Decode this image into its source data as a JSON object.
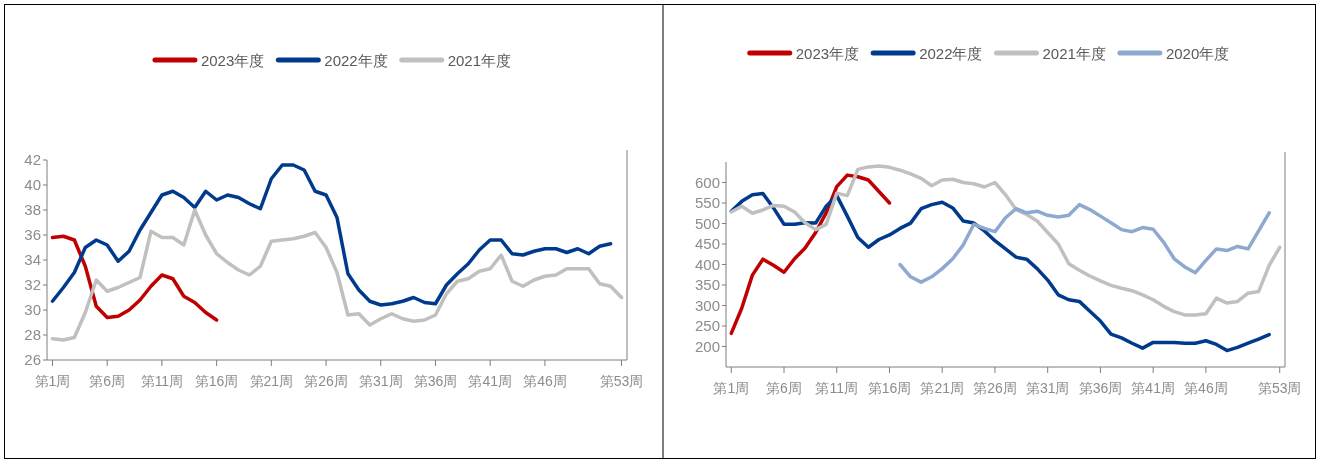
{
  "chart_data": [
    {
      "type": "line",
      "categories": [
        "第1周",
        null,
        null,
        null,
        null,
        "第6周",
        null,
        null,
        null,
        null,
        "第11周",
        null,
        null,
        null,
        null,
        "第16周",
        null,
        null,
        null,
        null,
        "第21周",
        null,
        null,
        null,
        null,
        "第26周",
        null,
        null,
        null,
        null,
        "第31周",
        null,
        null,
        null,
        null,
        "第36周",
        null,
        null,
        null,
        null,
        "第41周",
        null,
        null,
        null,
        null,
        "第46周",
        null,
        null,
        null,
        null,
        null,
        null,
        "第53周"
      ],
      "ylim": [
        26,
        42
      ],
      "yticks": [
        26,
        28,
        30,
        32,
        34,
        36,
        38,
        40,
        42
      ],
      "legend": "top",
      "grid": false,
      "series": [
        {
          "name": "2023年度",
          "color": "#c00000",
          "values": [
            35.8,
            35.9,
            35.6,
            33.5,
            30.3,
            29.4,
            29.5,
            30.0,
            30.8,
            31.9,
            32.8,
            32.5,
            31.1,
            30.6,
            29.8,
            29.2,
            null,
            null,
            null,
            null,
            null,
            null,
            null,
            null,
            null,
            null,
            null,
            null,
            null,
            null,
            null,
            null,
            null,
            null,
            null,
            null,
            null,
            null,
            null,
            null,
            null,
            null,
            null,
            null,
            null,
            null,
            null,
            null,
            null,
            null,
            null,
            null,
            null
          ]
        },
        {
          "name": "2022年度",
          "color": "#003a8c",
          "values": [
            30.7,
            31.8,
            33.0,
            35.0,
            35.6,
            35.2,
            33.9,
            34.7,
            36.4,
            37.8,
            39.2,
            39.5,
            39.0,
            38.2,
            39.5,
            38.8,
            39.2,
            39.0,
            38.5,
            38.1,
            40.5,
            41.6,
            41.6,
            41.2,
            39.5,
            39.2,
            37.4,
            32.9,
            31.6,
            30.7,
            30.4,
            30.5,
            30.7,
            31.0,
            30.6,
            30.5,
            32.0,
            32.9,
            33.7,
            34.8,
            35.6,
            35.6,
            34.5,
            34.4,
            34.7,
            34.9,
            34.9,
            34.6,
            34.9,
            34.5,
            35.1,
            35.3,
            null
          ]
        },
        {
          "name": "2021年度",
          "color": "#c0c0c0",
          "values": [
            27.7,
            27.6,
            27.8,
            29.8,
            32.4,
            31.5,
            31.8,
            32.2,
            32.6,
            36.3,
            35.8,
            35.8,
            35.2,
            38.0,
            36.0,
            34.5,
            33.8,
            33.2,
            32.8,
            33.5,
            35.5,
            35.6,
            35.7,
            35.9,
            36.2,
            35.0,
            33.0,
            29.6,
            29.7,
            28.8,
            29.3,
            29.7,
            29.3,
            29.1,
            29.2,
            29.6,
            31.3,
            32.3,
            32.5,
            33.1,
            33.3,
            34.4,
            32.3,
            31.9,
            32.4,
            32.7,
            32.8,
            33.3,
            33.3,
            33.3,
            32.1,
            31.9,
            31.0
          ]
        }
      ]
    },
    {
      "type": "line",
      "categories": [
        "第1周",
        null,
        null,
        null,
        null,
        "第6周",
        null,
        null,
        null,
        null,
        "第11周",
        null,
        null,
        null,
        null,
        "第16周",
        null,
        null,
        null,
        null,
        "第21周",
        null,
        null,
        null,
        null,
        "第26周",
        null,
        null,
        null,
        null,
        "第31周",
        null,
        null,
        null,
        null,
        "第36周",
        null,
        null,
        null,
        null,
        "第41周",
        null,
        null,
        null,
        null,
        "第46周",
        null,
        null,
        null,
        null,
        null,
        null,
        "第53周"
      ],
      "ylim": [
        150,
        650
      ],
      "yticks": [
        200,
        250,
        300,
        350,
        400,
        450,
        500,
        550,
        600
      ],
      "legend": "top",
      "grid": false,
      "series": [
        {
          "name": "2023年度",
          "color": "#c00000",
          "values": [
            232,
            294,
            374,
            413,
            398,
            381,
            414,
            440,
            478,
            526,
            590,
            618,
            614,
            606,
            578,
            550,
            null,
            null,
            null,
            null,
            null,
            null,
            null,
            null,
            null,
            null,
            null,
            null,
            null,
            null,
            null,
            null,
            null,
            null,
            null,
            null,
            null,
            null,
            null,
            null,
            null,
            null,
            null,
            null,
            null,
            null,
            null,
            null,
            null,
            null,
            null,
            null,
            null
          ]
        },
        {
          "name": "2022年度",
          "color": "#003a8c",
          "values": [
            530,
            554,
            570,
            573,
            538,
            498,
            498,
            502,
            501,
            542,
            568,
            518,
            466,
            442,
            461,
            472,
            488,
            501,
            536,
            546,
            552,
            538,
            506,
            501,
            482,
            458,
            438,
            418,
            413,
            390,
            362,
            326,
            314,
            310,
            286,
            262,
            230,
            221,
            208,
            196,
            210,
            210,
            210,
            208,
            208,
            214,
            205,
            190,
            198,
            208,
            218,
            229,
            null
          ]
        },
        {
          "name": "2021年度",
          "color": "#c0c0c0",
          "values": [
            528,
            542,
            525,
            533,
            544,
            542,
            528,
            502,
            485,
            498,
            574,
            568,
            632,
            638,
            640,
            637,
            630,
            621,
            610,
            592,
            606,
            608,
            600,
            597,
            589,
            600,
            570,
            534,
            522,
            506,
            478,
            450,
            402,
            386,
            372,
            360,
            349,
            342,
            336,
            326,
            314,
            298,
            285,
            277,
            277,
            280,
            318,
            306,
            310,
            330,
            334,
            398,
            442
          ]
        },
        {
          "name": "2020年度",
          "color": "#8ea9d0",
          "values": [
            null,
            null,
            null,
            null,
            null,
            null,
            null,
            null,
            null,
            null,
            null,
            null,
            null,
            null,
            null,
            null,
            400,
            370,
            357,
            370,
            390,
            414,
            448,
            498,
            488,
            480,
            514,
            536,
            526,
            530,
            520,
            516,
            520,
            546,
            534,
            518,
            502,
            485,
            480,
            490,
            486,
            454,
            414,
            394,
            380,
            410,
            438,
            434,
            444,
            438,
            482,
            526,
            null
          ]
        }
      ]
    }
  ]
}
